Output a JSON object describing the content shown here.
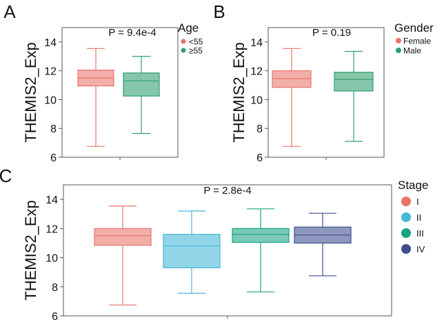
{
  "chart_data": [
    {
      "panel": "A",
      "type": "boxplot",
      "ylabel": "THEMIS2_Exp",
      "ylim": [
        6,
        15
      ],
      "yticks": [
        "6",
        "8",
        "10",
        "12",
        "14"
      ],
      "annotation": "P = 9.4e-4",
      "legend_title": "Age",
      "legend_position": "right",
      "series": [
        {
          "name": "<55",
          "color": "#e8746a",
          "whisker_low": 6.75,
          "q1": 10.95,
          "median": 11.5,
          "q3": 12.05,
          "whisker_high": 13.55
        },
        {
          "name": "≥55",
          "color": "#2e9e6e",
          "whisker_low": 7.65,
          "q1": 10.25,
          "median": 11.3,
          "q3": 11.85,
          "whisker_high": 13.0
        }
      ]
    },
    {
      "panel": "B",
      "type": "boxplot",
      "ylabel": "THEMIS2_Exp",
      "ylim": [
        6,
        15
      ],
      "yticks": [
        "6",
        "8",
        "10",
        "12",
        "14"
      ],
      "annotation": "P = 0.19",
      "legend_title": "Gender",
      "legend_position": "right",
      "series": [
        {
          "name": "Female",
          "color": "#e8746a",
          "whisker_low": 6.75,
          "q1": 10.85,
          "median": 11.45,
          "q3": 12.0,
          "whisker_high": 13.55
        },
        {
          "name": "Male",
          "color": "#2e9e6e",
          "whisker_low": 7.1,
          "q1": 10.6,
          "median": 11.4,
          "q3": 11.9,
          "whisker_high": 13.35
        }
      ]
    },
    {
      "panel": "C",
      "type": "boxplot",
      "ylabel": "THEMIS2_Exp",
      "ylim": [
        6,
        15
      ],
      "yticks": [
        "6",
        "8",
        "10",
        "12",
        "14"
      ],
      "annotation": "P = 2.8e-4",
      "legend_title": "Stage",
      "legend_position": "right",
      "series": [
        {
          "name": "I",
          "color": "#e8746a",
          "whisker_low": 6.75,
          "q1": 10.85,
          "median": 11.5,
          "q3": 12.0,
          "whisker_high": 13.55
        },
        {
          "name": "II",
          "color": "#45b7d8",
          "whisker_low": 7.55,
          "q1": 9.3,
          "median": 10.8,
          "q3": 11.6,
          "whisker_high": 13.2
        },
        {
          "name": "III",
          "color": "#1aa383",
          "whisker_low": 7.65,
          "q1": 11.05,
          "median": 11.6,
          "q3": 12.0,
          "whisker_high": 13.35
        },
        {
          "name": "IV",
          "color": "#3d4e8c",
          "whisker_low": 8.75,
          "q1": 11.0,
          "median": 11.55,
          "q3": 12.1,
          "whisker_high": 13.05
        }
      ]
    }
  ]
}
